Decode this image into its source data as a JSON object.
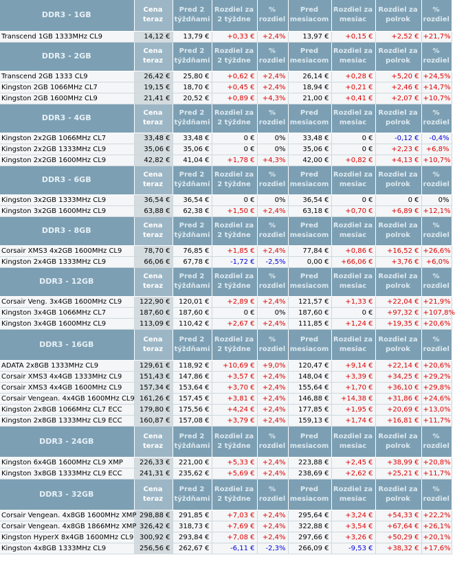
{
  "columns": {
    "now": "Cena teraz",
    "w2": "Pred 2 týždňami",
    "w2diff": "Rozdiel za 2 týždne",
    "w2pct": "% rozdiel",
    "m1": "Pred mesiacom",
    "m1diff": "Rozdiel za mesiac",
    "h1diff": "Rozdiel za polrok",
    "h1pct": "% rozdiel"
  },
  "colors": {
    "header": "#7c9fb3",
    "positive": "#e00000",
    "negative": "#0000dd"
  },
  "groups": [
    {
      "title": "DDR3 - 1GB",
      "rows": [
        [
          "Transcend 1GB 1333MHz CL9",
          "14,12 €",
          "13,79 €",
          "+0,33 €",
          "+2,4%",
          "13,97 €",
          "+0,15 €",
          "+2,52 €",
          "+21,7%"
        ]
      ]
    },
    {
      "title": "DDR3 - 2GB",
      "rows": [
        [
          "Transcend 2GB 1333 CL9",
          "26,42 €",
          "25,80 €",
          "+0,62 €",
          "+2,4%",
          "26,14 €",
          "+0,28 €",
          "+5,20 €",
          "+24,5%"
        ],
        [
          "Kingston 2GB 1066MHz CL7",
          "19,15 €",
          "18,70 €",
          "+0,45 €",
          "+2,4%",
          "18,94 €",
          "+0,21 €",
          "+2,46 €",
          "+14,7%"
        ],
        [
          "Kingston 2GB 1600MHz CL9",
          "21,41 €",
          "20,52 €",
          "+0,89 €",
          "+4,3%",
          "21,00 €",
          "+0,41 €",
          "+2,07 €",
          "+10,7%"
        ]
      ]
    },
    {
      "title": "DDR3 - 4GB",
      "rows": [
        [
          "Kingston 2x2GB 1066MHz CL7",
          "33,48 €",
          "33,48 €",
          "0 €",
          "0%",
          "33,48 €",
          "0 €",
          "-0,12 €",
          "-0,4%"
        ],
        [
          "Kingston 2x2GB 1333MHz CL9",
          "35,06 €",
          "35,06 €",
          "0 €",
          "0%",
          "35,06 €",
          "0 €",
          "+2,23 €",
          "+6,8%"
        ],
        [
          "Kingston 2x2GB 1600MHz CL9",
          "42,82 €",
          "41,04 €",
          "+1,78 €",
          "+4,3%",
          "42,00 €",
          "+0,82 €",
          "+4,13 €",
          "+10,7%"
        ]
      ]
    },
    {
      "title": "DDR3 - 6GB",
      "rows": [
        [
          "Kingston 3x2GB 1333MHz CL9",
          "36,54 €",
          "36,54 €",
          "0 €",
          "0%",
          "36,54 €",
          "0 €",
          "0 €",
          "0%"
        ],
        [
          "Kingston 3x2GB 1600MHz CL9",
          "63,88 €",
          "62,38 €",
          "+1,50 €",
          "+2,4%",
          "63,18 €",
          "+0,70 €",
          "+6,89 €",
          "+12,1%"
        ]
      ]
    },
    {
      "title": "DDR3 - 8GB",
      "rows": [
        [
          "Corsair XMS3 4x2GB 1600MHz CL9",
          "78,70 €",
          "76,85 €",
          "+1,85 €",
          "+2,4%",
          "77,84 €",
          "+0,86 €",
          "+16,52 €",
          "+26,6%"
        ],
        [
          "Kingston 2x4GB 1333MHz CL9",
          "66,06 €",
          "67,78 €",
          "-1,72 €",
          "-2,5%",
          "0,00 €",
          "+66,06 €",
          "+3,76 €",
          "+6,0%"
        ]
      ]
    },
    {
      "title": "DDR3 - 12GB",
      "rows": [
        [
          "Corsair Veng. 3x4GB 1600MHz CL9",
          "122,90 €",
          "120,01 €",
          "+2,89 €",
          "+2,4%",
          "121,57 €",
          "+1,33 €",
          "+22,04 €",
          "+21,9%"
        ],
        [
          "Kingston 3x4GB 1066MHz CL7",
          "187,60 €",
          "187,60 €",
          "0 €",
          "0%",
          "187,60 €",
          "0 €",
          "+97,32 €",
          "+107,8%"
        ],
        [
          "Kingston 3x4GB 1600MHz CL9",
          "113,09 €",
          "110,42 €",
          "+2,67 €",
          "+2,4%",
          "111,85 €",
          "+1,24 €",
          "+19,35 €",
          "+20,6%"
        ]
      ]
    },
    {
      "title": "DDR3 - 16GB",
      "rows": [
        [
          "ADATA 2x8GB 1333MHz CL9",
          "129,61 €",
          "118,92 €",
          "+10,69 €",
          "+9,0%",
          "120,47 €",
          "+9,14 €",
          "+22,14 €",
          "+20,6%"
        ],
        [
          "Corsair XMS3 4x4GB 1333MHz CL9",
          "151,43 €",
          "147,86 €",
          "+3,57 €",
          "+2,4%",
          "148,04 €",
          "+3,39 €",
          "+34,25 €",
          "+29,2%"
        ],
        [
          "Corsair XMS3 4x4GB 1600MHz CL9",
          "157,34 €",
          "153,64 €",
          "+3,70 €",
          "+2,4%",
          "155,64 €",
          "+1,70 €",
          "+36,10 €",
          "+29,8%"
        ],
        [
          "Corsair Vengean. 4x4GB 1600MHz CL9",
          "161,26 €",
          "157,45 €",
          "+3,81 €",
          "+2,4%",
          "146,88 €",
          "+14,38 €",
          "+31,86 €",
          "+24,6%"
        ],
        [
          "Kingston 2x8GB 1066MHz CL7 ECC",
          "179,80 €",
          "175,56 €",
          "+4,24 €",
          "+2,4%",
          "177,85 €",
          "+1,95 €",
          "+20,69 €",
          "+13,0%"
        ],
        [
          "Kingston 2x8GB 1333MHz CL9 ECC",
          "160,87 €",
          "157,08 €",
          "+3,79 €",
          "+2,4%",
          "159,13 €",
          "+1,74 €",
          "+16,81 €",
          "+11,7%"
        ]
      ]
    },
    {
      "title": "DDR3 - 24GB",
      "rows": [
        [
          "Kingston 6x4GB 1600MHz CL9 XMP",
          "226,33 €",
          "221,00 €",
          "+5,33 €",
          "+2,4%",
          "223,88 €",
          "+2,45 €",
          "+38,99 €",
          "+20,8%"
        ],
        [
          "Kingston 3x8GB 1333MHz CL9 ECC",
          "241,31 €",
          "235,62 €",
          "+5,69 €",
          "+2,4%",
          "238,69 €",
          "+2,62 €",
          "+25,21 €",
          "+11,7%"
        ]
      ]
    },
    {
      "title": "DDR3 - 32GB",
      "rows": [
        [
          "Corsair Vengean. 4x8GB 1600MHz XMP",
          "298,88 €",
          "291,85 €",
          "+7,03 €",
          "+2,4%",
          "295,64 €",
          "+3,24 €",
          "+54,33 €",
          "+22,2%"
        ],
        [
          "Corsair Vengean. 4x8GB 1866MHz XMP",
          "326,42 €",
          "318,73 €",
          "+7,69 €",
          "+2,4%",
          "322,88 €",
          "+3,54 €",
          "+67,64 €",
          "+26,1%"
        ],
        [
          "Kingston HyperX 8x4GB 1600MHz CL9",
          "300,92 €",
          "293,84 €",
          "+7,08 €",
          "+2,4%",
          "297,66 €",
          "+3,26 €",
          "+50,29 €",
          "+20,1%"
        ],
        [
          "Kingston 4x8GB 1333MHz CL9",
          "256,56 €",
          "262,67 €",
          "-6,11 €",
          "-2,3%",
          "266,09 €",
          "-9,53 €",
          "+38,32 €",
          "+17,6%"
        ]
      ]
    }
  ]
}
